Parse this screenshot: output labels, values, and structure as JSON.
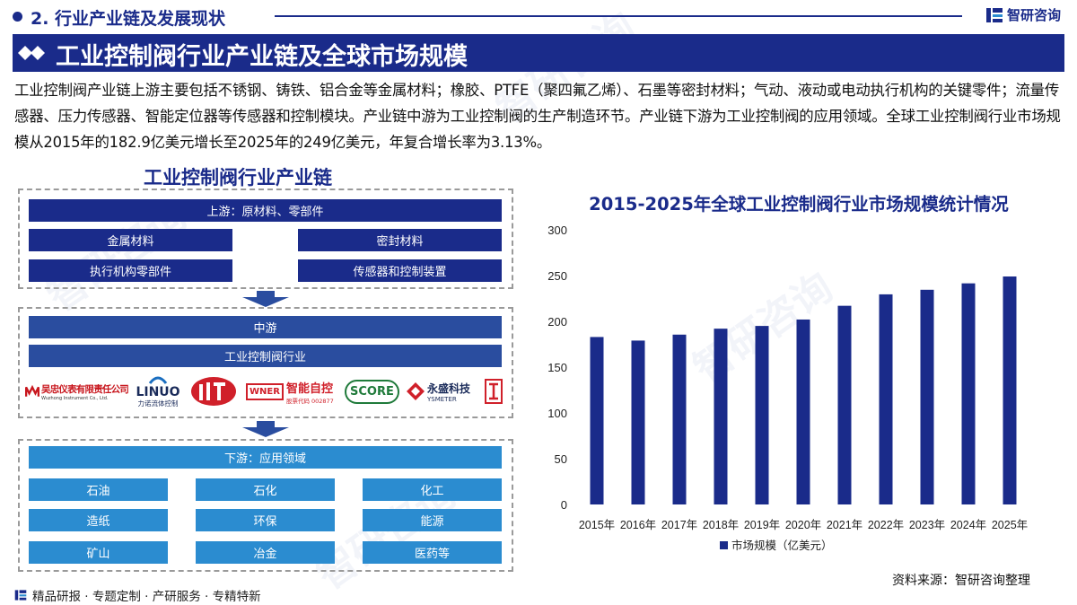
{
  "section": {
    "title": "2. 行业产业链及发展现状"
  },
  "brand": {
    "name": "智研咨询",
    "icon": "brand-logo-icon"
  },
  "banner": {
    "title": "工业控制阀行业产业链及全球市场规模",
    "icon": "double-diamond-icon"
  },
  "intro": "工业控制阀产业链上游主要包括不锈钢、铸铁、铝合金等金属材料；橡胶、PTFE（聚四氟乙烯）、石墨等密封材料；气动、液动或电动执行机构的关键零件；流量传感器、压力传感器、智能定位器等传感器和控制模块。产业链中游为工业控制阀的生产制造环节。产业链下游为工业控制阀的应用领域。全球工业控制阀行业市场规模从2015年的182.9亿美元增长至2025年的249亿美元，年复合增长率为3.13%。",
  "chain": {
    "title": "工业控制阀行业产业链",
    "upstream": {
      "header": "上游：原材料、零部件",
      "items": [
        "金属材料",
        "密封材料",
        "执行机构零部件",
        "传感器和控制装置"
      ]
    },
    "midstream": {
      "header": "中游",
      "sub": "工业控制阀行业",
      "logos": [
        {
          "name": "吴忠仪表有限责任公司",
          "sub": "Wuzhong Instrument Co., Ltd."
        },
        {
          "name": "LINUO",
          "sub": "力诺流体控制"
        },
        {
          "name": "智能自控",
          "sub": "股票代码 002877",
          "badge": "WNER"
        },
        {
          "name": "SCORE"
        },
        {
          "name": "永盛科技",
          "sub": "YSMETER"
        }
      ]
    },
    "downstream": {
      "header": "下游：应用领域",
      "items": [
        "石油",
        "石化",
        "化工",
        "造纸",
        "环保",
        "能源",
        "矿山",
        "冶金",
        "医药等"
      ]
    }
  },
  "chart_data": {
    "type": "bar",
    "title": "2015-2025年全球工业控制阀行业市场规模统计情况",
    "categories": [
      "2015年",
      "2016年",
      "2017年",
      "2018年",
      "2019年",
      "2020年",
      "2021年",
      "2022年",
      "2023年",
      "2024年",
      "2025年"
    ],
    "series": [
      {
        "name": "市场规模（亿美元）",
        "values": [
          182.9,
          179,
          185.5,
          192,
          195,
          202,
          217,
          229.5,
          234.5,
          241.5,
          249
        ]
      }
    ],
    "ylim": [
      0,
      300
    ],
    "yticks": [
      0,
      50,
      100,
      150,
      200,
      250,
      300
    ],
    "grid": false,
    "legend_position": "bottom",
    "color": "#1a2b8a"
  },
  "source": "资料来源：智研咨询整理",
  "footer": {
    "text": "精品研报 · 专题定制 · 产研服务 · 专精特新"
  }
}
